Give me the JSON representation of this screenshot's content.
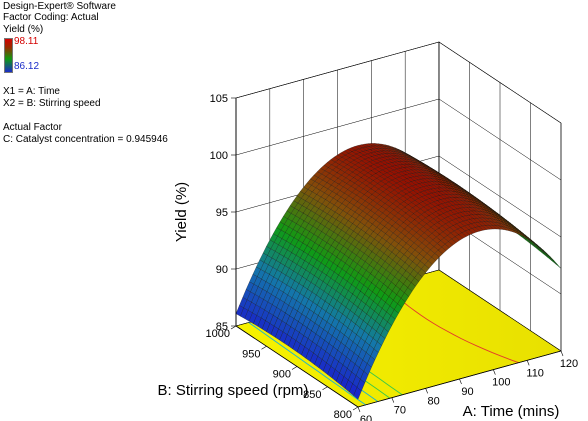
{
  "software": {
    "title": "Design-Expert® Software",
    "coding": "Factor Coding: Actual",
    "response": "Yield (%)",
    "legend_max": "98.11",
    "legend_min": "86.12",
    "x1": "X1 = A: Time",
    "x2": "X2 = B: Stirring speed",
    "actual_factor_heading": "Actual Factor",
    "actual_factor": "C: Catalyst concentration = 0.945946"
  },
  "chart_data": {
    "type": "surface",
    "title": "",
    "xlabel": "A: Time (mins)",
    "ylabel": "B: Stirring speed (rpm)",
    "zlabel": "Yield (%)",
    "xlim": [
      60,
      120
    ],
    "ylim": [
      800,
      1000
    ],
    "zlim": [
      85,
      105
    ],
    "x_ticks": [
      "60",
      "70",
      "80",
      "90",
      "100",
      "110",
      "120"
    ],
    "y_ticks": [
      "800",
      "850",
      "900",
      "950",
      "1000"
    ],
    "z_ticks": [
      "85",
      "90",
      "95",
      "100",
      "105"
    ],
    "response_range": [
      86.12,
      98.11
    ],
    "surface_corners": [
      {
        "time": 60,
        "speed": 1000,
        "yield": 86.5
      },
      {
        "time": 60,
        "speed": 800,
        "yield": 86.1
      },
      {
        "time": 120,
        "speed": 1000,
        "yield": 97.5
      },
      {
        "time": 120,
        "speed": 800,
        "yield": 97.0
      }
    ],
    "peak": {
      "time": 96,
      "speed": 925,
      "yield": 98.11
    },
    "colors": {
      "low": "#1a2cc8",
      "mid": "#0f9a10",
      "high": "#8b1a00",
      "floor": "#f2ee00"
    }
  }
}
